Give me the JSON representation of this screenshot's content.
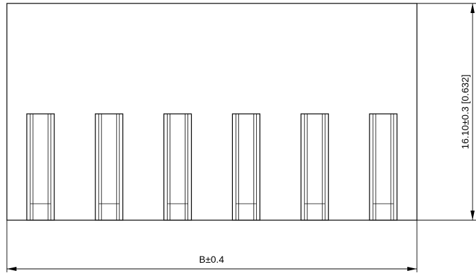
{
  "dimensions": {
    "width_label": "B±0.4",
    "height_label": "16.10±0.3 [0.632]"
  },
  "pins": {
    "count": 6
  }
}
